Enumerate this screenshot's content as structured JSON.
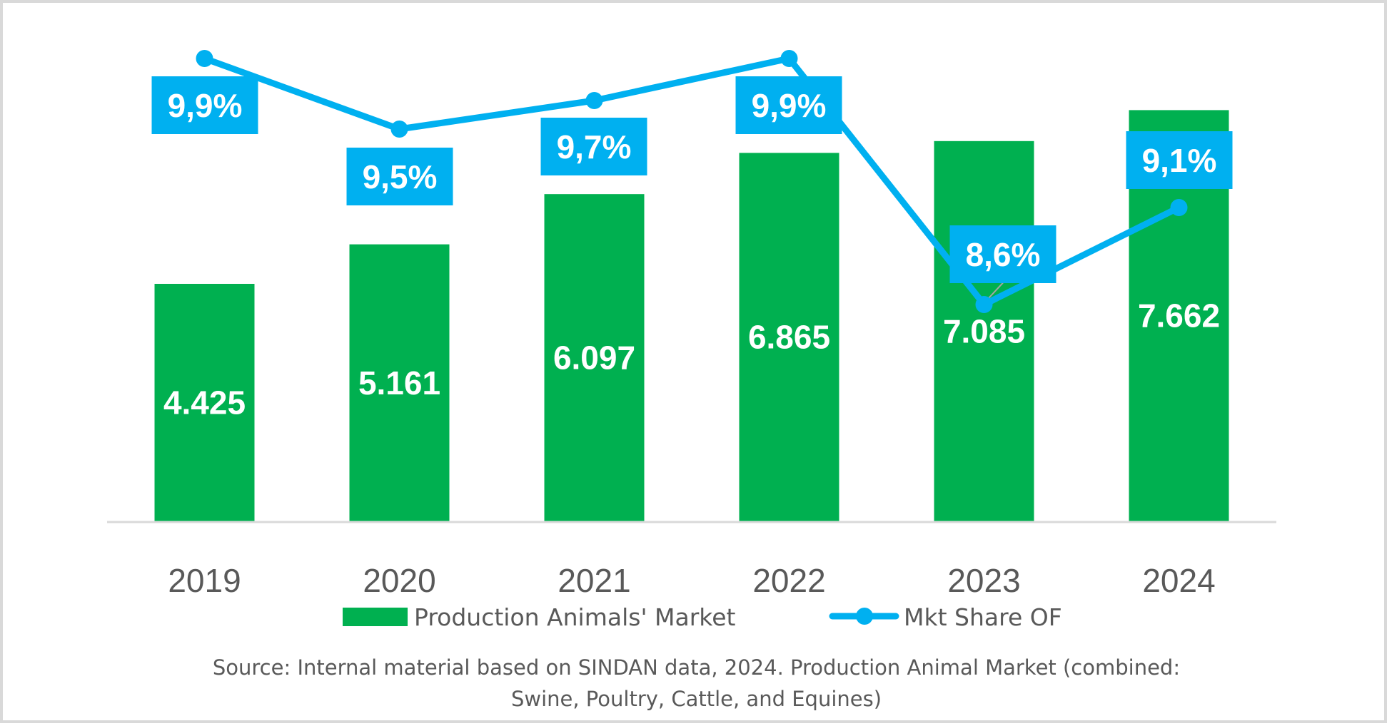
{
  "chart_data": {
    "type": "bar+line",
    "categories": [
      "2019",
      "2020",
      "2021",
      "2022",
      "2023",
      "2024"
    ],
    "series": [
      {
        "name": "Production Animals' Market",
        "type": "bar",
        "axis": "primary",
        "color": "#00b050",
        "values": [
          4425,
          5161,
          6097,
          6865,
          7085,
          7662
        ],
        "labels": [
          "4.425",
          "5.161",
          "6.097",
          "6.865",
          "7.085",
          "7.662"
        ]
      },
      {
        "name": "Mkt Share OF",
        "type": "line",
        "axis": "secondary",
        "color": "#00b0f0",
        "values": [
          9.9,
          9.5,
          9.7,
          9.9,
          8.6,
          9.1
        ],
        "labels": [
          "9,9%",
          "9,5%",
          "9,7%",
          "9,9%",
          "8,6%",
          "9,1%"
        ]
      }
    ],
    "title": "",
    "xlabel": "",
    "ylabel": "",
    "ylim": [
      0,
      9700
    ],
    "y2lim": [
      7.46,
      10.19
    ],
    "grid": false,
    "legend": "bottom",
    "axis_color": "#d9d9d9",
    "text_color": "#595959"
  },
  "source_note": {
    "line1": "Source: Internal material based on SINDAN data, 2024. Production Animal Market (combined:",
    "line2": "Swine, Poultry, Cattle, and Equines)"
  }
}
